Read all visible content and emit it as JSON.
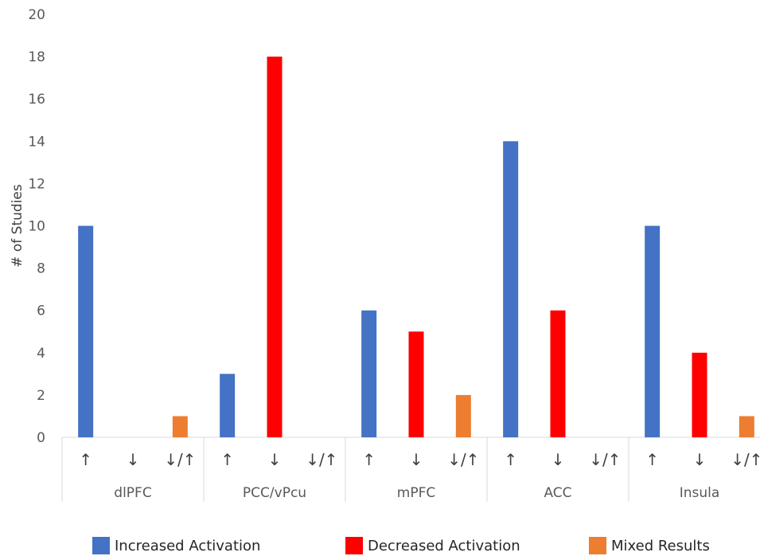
{
  "chart_data": {
    "type": "bar",
    "ylabel": "# of Studies",
    "xlabel": "",
    "ylim": [
      0,
      20
    ],
    "yticks": [
      0,
      2,
      4,
      6,
      8,
      10,
      12,
      14,
      16,
      18,
      20
    ],
    "grid": false,
    "legend_position": "bottom",
    "groups": [
      "dlPFC",
      "PCC/vPcu",
      "mPFC",
      "ACC",
      "Insula"
    ],
    "subcategories": [
      "↑",
      "↓",
      "↓/↑"
    ],
    "series": [
      {
        "name": "Increased Activation",
        "color": "#4472C4",
        "subcategory": "↑",
        "values": [
          10,
          3,
          6,
          14,
          10
        ]
      },
      {
        "name": "Decreased Activation",
        "color": "#FF0000",
        "subcategory": "↓",
        "values": [
          0,
          18,
          5,
          6,
          4
        ]
      },
      {
        "name": "Mixed Results",
        "color": "#ED7D31",
        "subcategory": "↓/↑",
        "values": [
          1,
          0,
          2,
          0,
          1
        ]
      }
    ]
  }
}
